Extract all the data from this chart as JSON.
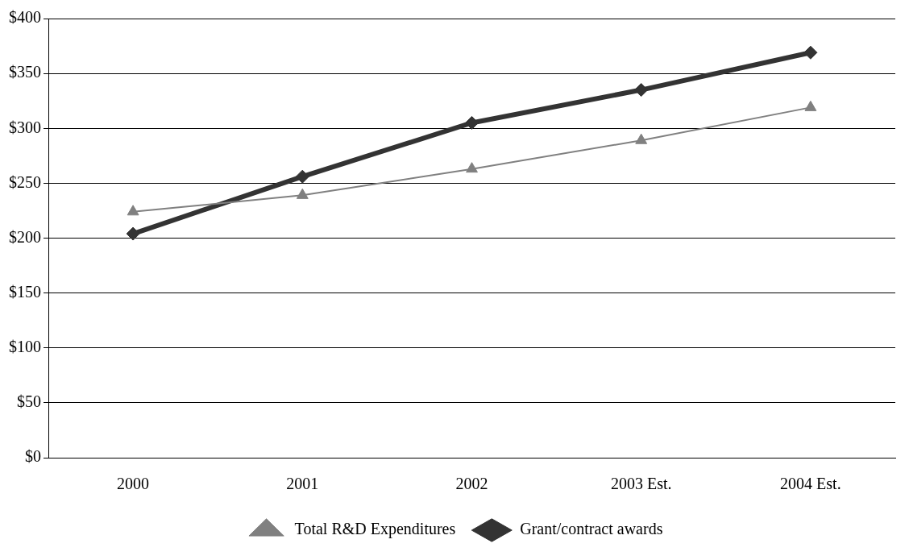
{
  "chart_data": {
    "type": "line",
    "categories": [
      "2000",
      "2001",
      "2002",
      "2003 Est.",
      "2004 Est."
    ],
    "series": [
      {
        "name": "Total R&D Expenditures",
        "color": "#808080",
        "values": [
          224,
          239,
          263,
          289,
          319
        ],
        "marker": "triangle"
      },
      {
        "name": "Grant/contract awards",
        "color": "#333333",
        "values": [
          204,
          256,
          305,
          335,
          369
        ],
        "marker": "diamond"
      }
    ],
    "ylim": [
      0,
      400
    ],
    "yticks": [
      {
        "value": 0,
        "label": "$0"
      },
      {
        "value": 50,
        "label": "$50"
      },
      {
        "value": 100,
        "label": "$100"
      },
      {
        "value": 150,
        "label": "$150"
      },
      {
        "value": 200,
        "label": "$200"
      },
      {
        "value": 250,
        "label": "$250"
      },
      {
        "value": 300,
        "label": "$300"
      },
      {
        "value": 350,
        "label": "$350"
      },
      {
        "value": 400,
        "label": "$400"
      }
    ],
    "grid": "y",
    "legend": "bottom",
    "line_style": "solid"
  }
}
